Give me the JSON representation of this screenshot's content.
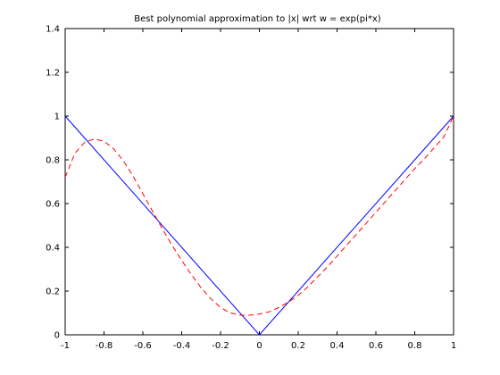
{
  "chart_data": {
    "type": "line",
    "title": "Best polynomial approximation to |x| wrt w = exp(pi*x)",
    "xlabel": "",
    "ylabel": "",
    "xlim": [
      -1,
      1
    ],
    "ylim": [
      0,
      1.4
    ],
    "xticks": [
      -1,
      -0.8,
      -0.6,
      -0.4,
      -0.2,
      0,
      0.2,
      0.4,
      0.6,
      0.8,
      1
    ],
    "yticks": [
      0,
      0.2,
      0.4,
      0.6,
      0.8,
      1,
      1.2,
      1.4
    ],
    "xtick_labels": [
      "-1",
      "-0.8",
      "-0.6",
      "-0.4",
      "-0.2",
      "0",
      "0.2",
      "0.4",
      "0.6",
      "0.8",
      "1"
    ],
    "ytick_labels": [
      "0",
      "0.2",
      "0.4",
      "0.6",
      "0.8",
      "1",
      "1.2",
      "1.4"
    ],
    "grid": false,
    "legend": "none",
    "series": [
      {
        "color": "#0000ff",
        "style": "solid",
        "x": [
          -1,
          0,
          1
        ],
        "y": [
          1,
          0,
          1
        ]
      },
      {
        "color": "#ff0000",
        "style": "dashed",
        "x": [
          -1,
          -0.95,
          -0.9,
          -0.85,
          -0.8,
          -0.75,
          -0.7,
          -0.65,
          -0.6,
          -0.55,
          -0.5,
          -0.45,
          -0.4,
          -0.35,
          -0.3,
          -0.25,
          -0.2,
          -0.15,
          -0.1,
          -0.05,
          0,
          0.05,
          0.1,
          0.15,
          0.2,
          0.25,
          0.3,
          0.35,
          0.4,
          0.45,
          0.5,
          0.55,
          0.6,
          0.65,
          0.7,
          0.75,
          0.8,
          0.85,
          0.9,
          0.95,
          1
        ],
        "y": [
          0.72,
          0.83,
          0.88,
          0.895,
          0.885,
          0.85,
          0.795,
          0.725,
          0.645,
          0.565,
          0.485,
          0.41,
          0.34,
          0.275,
          0.215,
          0.165,
          0.125,
          0.1,
          0.09,
          0.09,
          0.095,
          0.105,
          0.125,
          0.15,
          0.18,
          0.22,
          0.265,
          0.31,
          0.36,
          0.41,
          0.46,
          0.51,
          0.56,
          0.61,
          0.66,
          0.71,
          0.76,
          0.805,
          0.855,
          0.905,
          1.0
        ]
      }
    ]
  }
}
